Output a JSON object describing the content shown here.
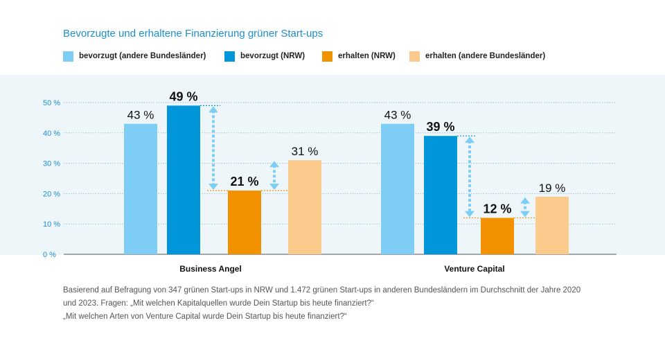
{
  "chart_data": {
    "type": "bar",
    "title": "Bevorzugte und erhaltene Finanzierung grüner Start-ups",
    "categories": [
      "Business Angel",
      "Venture Capital"
    ],
    "series": [
      {
        "name": "bevorzugt (andere Bundesländer)",
        "values": [
          43,
          43
        ],
        "labels": [
          "43 %",
          "43 %"
        ],
        "color": "#7ecdf4",
        "bold": false
      },
      {
        "name": "bevorzugt (NRW)",
        "values": [
          49,
          39
        ],
        "labels": [
          "49 %",
          "39 %"
        ],
        "color": "#0096d9",
        "bold": true
      },
      {
        "name": "erhalten (NRW)",
        "values": [
          21,
          12
        ],
        "labels": [
          "21 %",
          "12 %"
        ],
        "color": "#f39200",
        "bold": true
      },
      {
        "name": "erhalten (andere Bundesländer)",
        "values": [
          31,
          19
        ],
        "labels": [
          "31 %",
          "19 %"
        ],
        "color": "#fbcb8d",
        "bold": false
      }
    ],
    "yticks": [
      0,
      10,
      20,
      30,
      40,
      50
    ],
    "ytick_labels": [
      "0 %",
      "10 %",
      "20 %",
      "30 %",
      "40 %",
      "50 %"
    ],
    "ylim": [
      0,
      50
    ],
    "grid": true,
    "legend_position": "top-left",
    "arrow_color": "#7ecdf4",
    "connector_color": "#f39200"
  },
  "footnote": {
    "line1": "Basierend auf Befragung von 347 grünen Start-ups in NRW und 1.472 grünen Start-ups in anderen Bundesländern im Durchschnitt der Jahre 2020",
    "line2": "und 2023. Fragen:  „Mit welchen Kapitalquellen wurde Dein Startup bis heute finanziert?“",
    "line3": "„Mit welchen Arten von Venture Capital wurde Dein Startup bis heute finanziert?“"
  }
}
